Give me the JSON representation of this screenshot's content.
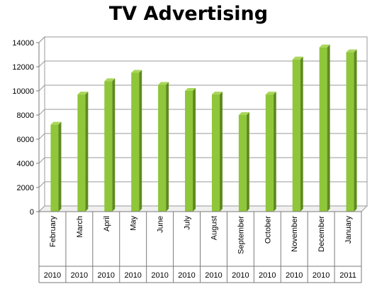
{
  "chart_data": {
    "type": "bar",
    "title": "TV Advertising",
    "categories": [
      "February",
      "March",
      "April",
      "May",
      "June",
      "July",
      "August",
      "September",
      "October",
      "November",
      "December",
      "January"
    ],
    "years": [
      "2010",
      "2010",
      "2010",
      "2010",
      "2010",
      "2010",
      "2010",
      "2010",
      "2010",
      "2010",
      "2010",
      "2011"
    ],
    "values": [
      7200,
      9700,
      10800,
      11500,
      10500,
      10000,
      9700,
      8000,
      9700,
      12600,
      13600,
      13200
    ],
    "ylim": [
      0,
      14000
    ],
    "yticks": [
      "0",
      "2000",
      "4000",
      "6000",
      "8000",
      "10000",
      "12000",
      "14000"
    ],
    "grid": true,
    "bar_color": "#8fc63a",
    "bar_shadow_color": "#5f8a1f"
  }
}
